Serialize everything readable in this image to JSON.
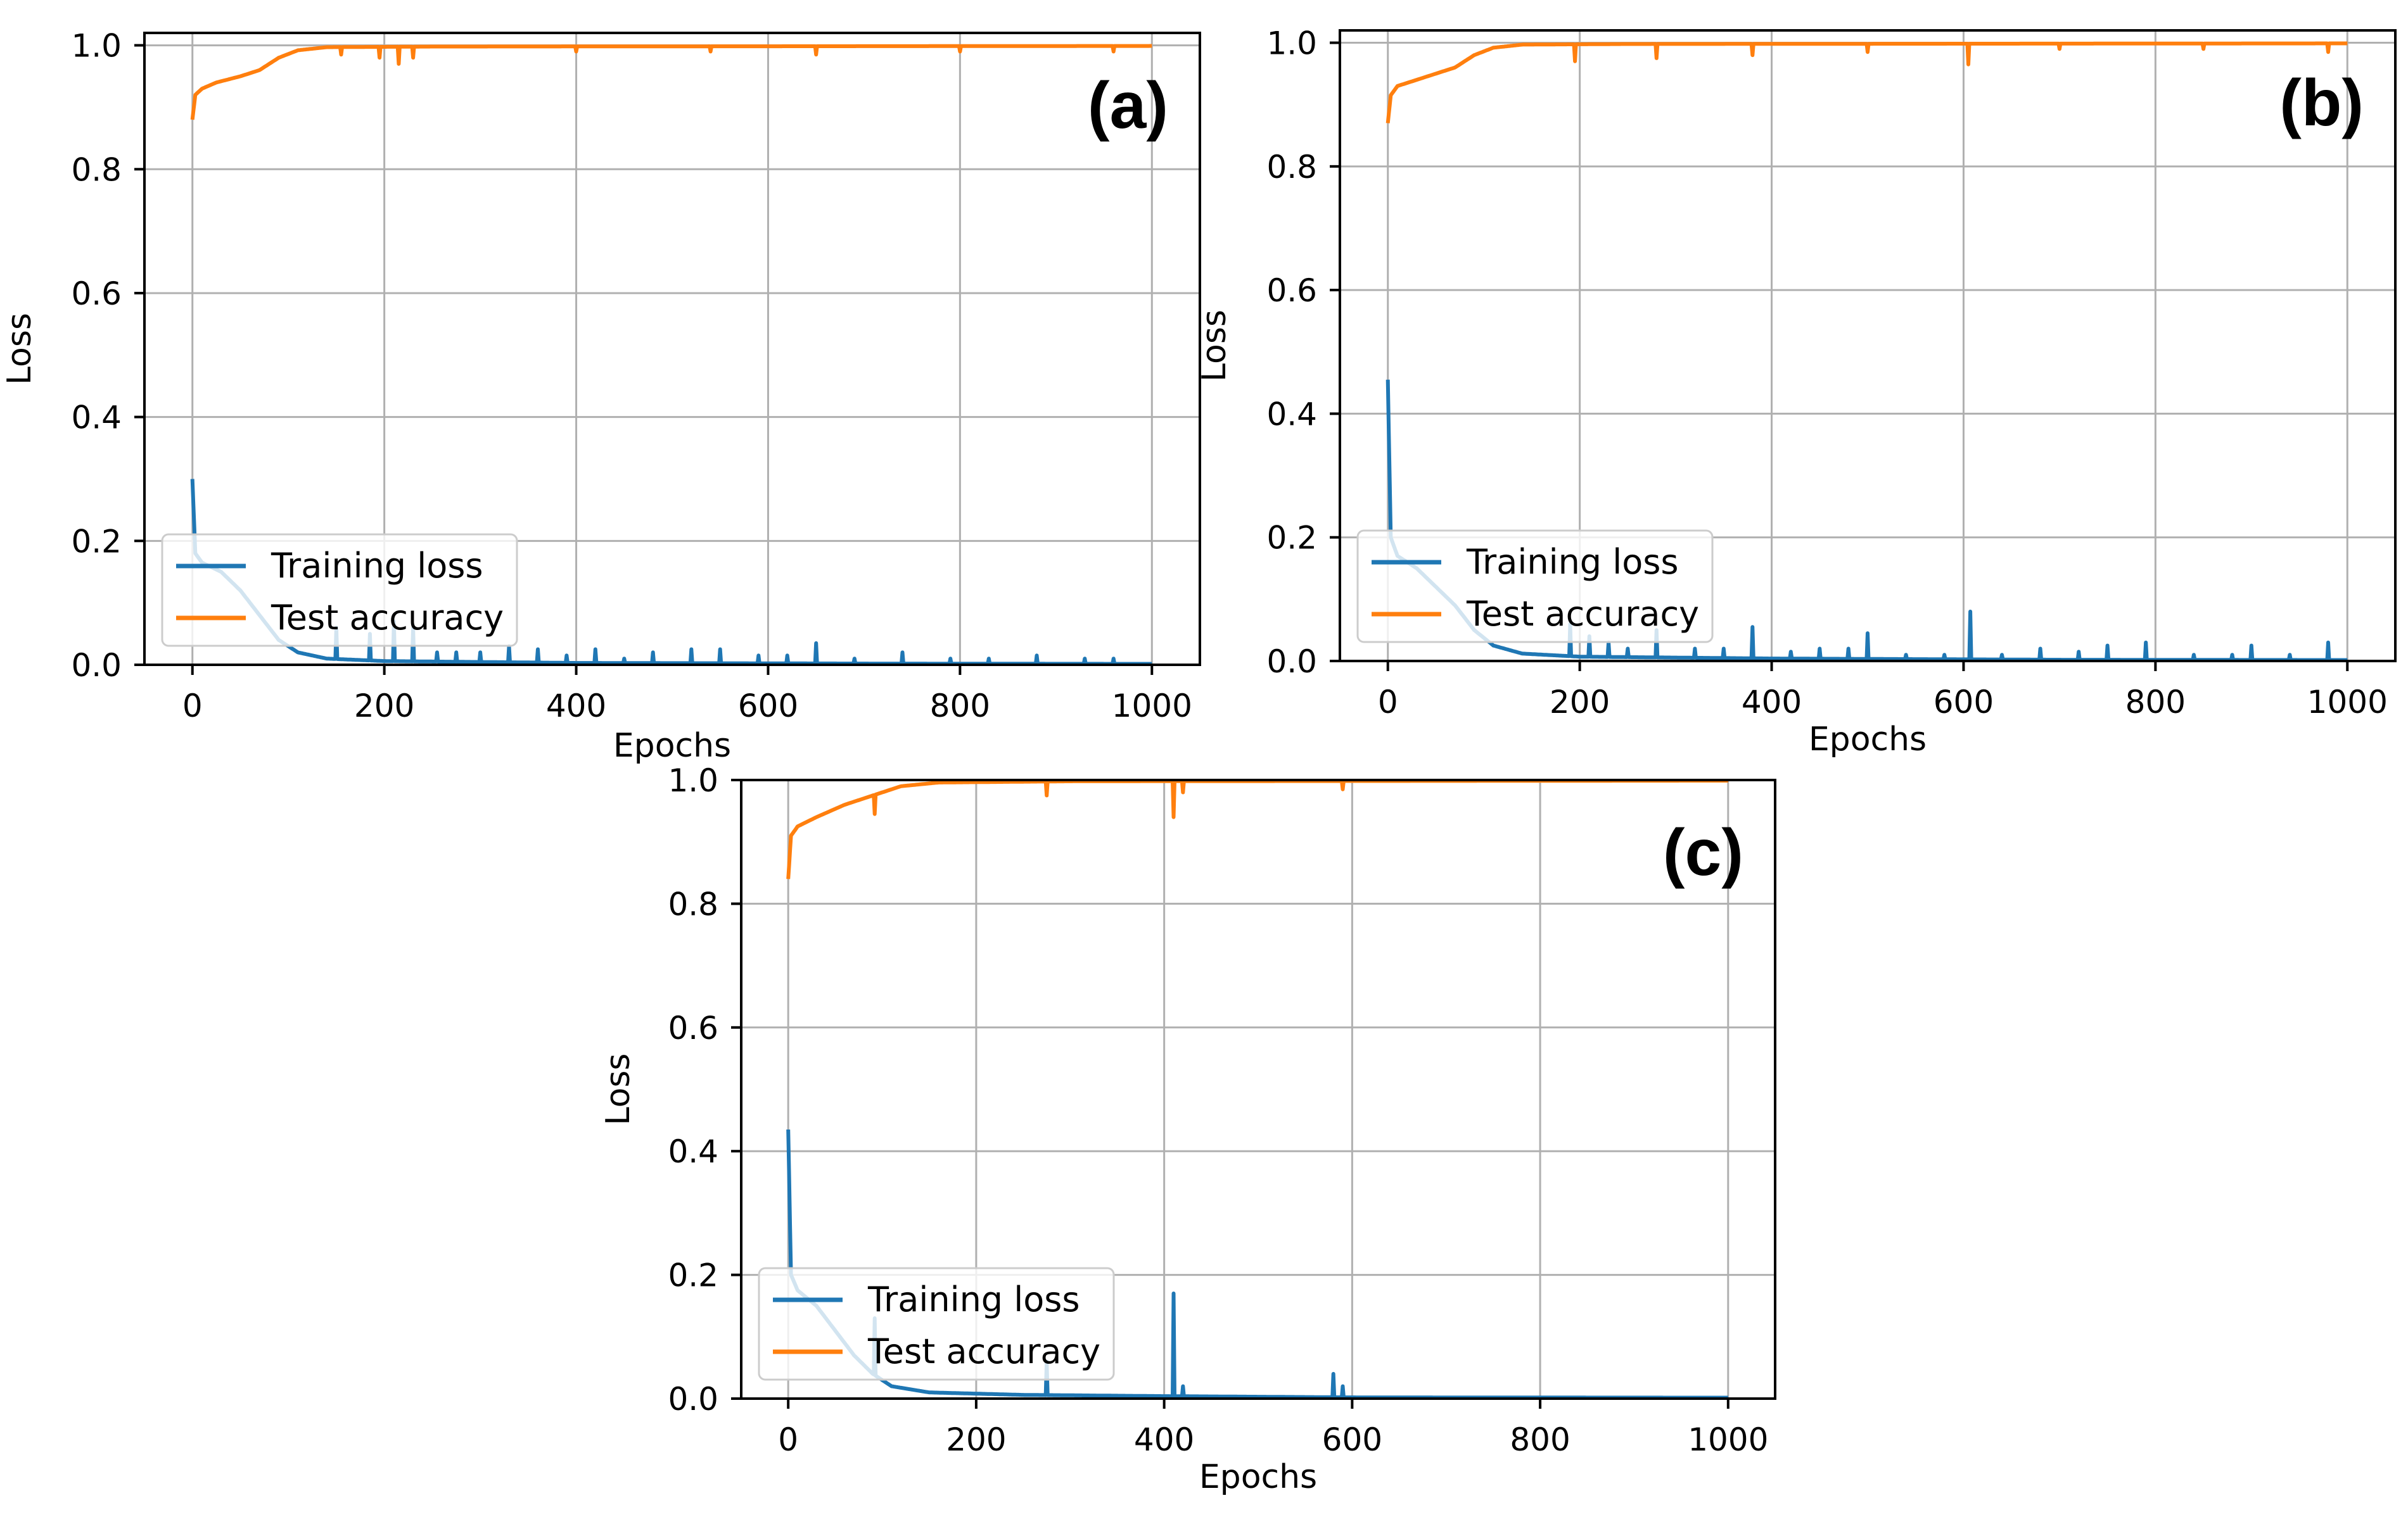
{
  "chart_data": [
    {
      "type": "line",
      "panel": "(a)",
      "xlabel": "Epochs",
      "ylabel": "Loss",
      "xlim": [
        -50,
        1050
      ],
      "ylim": [
        0,
        1.02
      ],
      "xticks": [
        0,
        200,
        400,
        600,
        800,
        1000
      ],
      "yticks": [
        0.0,
        0.2,
        0.4,
        0.6,
        0.8,
        1.0
      ],
      "grid": true,
      "legend": [
        "Training loss",
        "Test accuracy"
      ],
      "legend_loc": "lower left",
      "series": [
        {
          "name": "Training loss",
          "color": "#1f77b4",
          "base": [
            [
              0,
              0.3
            ],
            [
              3,
              0.18
            ],
            [
              10,
              0.165
            ],
            [
              30,
              0.15
            ],
            [
              50,
              0.12
            ],
            [
              70,
              0.08
            ],
            [
              90,
              0.04
            ],
            [
              110,
              0.02
            ],
            [
              140,
              0.01
            ],
            [
              200,
              0.006
            ],
            [
              400,
              0.003
            ],
            [
              700,
              0.002
            ],
            [
              1000,
              0.0015
            ]
          ],
          "spikes": [
            [
              150,
              0.06
            ],
            [
              185,
              0.05
            ],
            [
              210,
              0.07
            ],
            [
              230,
              0.06
            ],
            [
              255,
              0.02
            ],
            [
              275,
              0.02
            ],
            [
              300,
              0.02
            ],
            [
              330,
              0.03
            ],
            [
              360,
              0.025
            ],
            [
              390,
              0.015
            ],
            [
              420,
              0.025
            ],
            [
              450,
              0.01
            ],
            [
              480,
              0.02
            ],
            [
              520,
              0.025
            ],
            [
              550,
              0.025
            ],
            [
              590,
              0.015
            ],
            [
              620,
              0.015
            ],
            [
              650,
              0.035
            ],
            [
              690,
              0.01
            ],
            [
              740,
              0.02
            ],
            [
              790,
              0.01
            ],
            [
              830,
              0.01
            ],
            [
              880,
              0.015
            ],
            [
              930,
              0.01
            ],
            [
              960,
              0.01
            ]
          ]
        },
        {
          "name": "Test accuracy",
          "color": "#ff7f0e",
          "base": [
            [
              0,
              0.88
            ],
            [
              3,
              0.92
            ],
            [
              10,
              0.93
            ],
            [
              25,
              0.94
            ],
            [
              50,
              0.95
            ],
            [
              70,
              0.96
            ],
            [
              90,
              0.98
            ],
            [
              110,
              0.992
            ],
            [
              140,
              0.997
            ],
            [
              250,
              0.998
            ],
            [
              1000,
              0.999
            ]
          ],
          "spikes": [
            [
              155,
              0.985
            ],
            [
              195,
              0.98
            ],
            [
              215,
              0.97
            ],
            [
              230,
              0.98
            ],
            [
              400,
              0.99
            ],
            [
              540,
              0.99
            ],
            [
              650,
              0.985
            ],
            [
              800,
              0.99
            ],
            [
              960,
              0.99
            ]
          ]
        }
      ]
    },
    {
      "type": "line",
      "panel": "(b)",
      "xlabel": "Epochs",
      "ylabel": "Loss",
      "xlim": [
        -50,
        1050
      ],
      "ylim": [
        0,
        1.02
      ],
      "xticks": [
        0,
        200,
        400,
        600,
        800,
        1000
      ],
      "yticks": [
        0.0,
        0.2,
        0.4,
        0.6,
        0.8,
        1.0
      ],
      "grid": true,
      "legend": [
        "Training loss",
        "Test accuracy"
      ],
      "legend_loc": "lower left",
      "series": [
        {
          "name": "Training loss",
          "color": "#1f77b4",
          "base": [
            [
              0,
              0.455
            ],
            [
              3,
              0.2
            ],
            [
              10,
              0.17
            ],
            [
              30,
              0.15
            ],
            [
              50,
              0.12
            ],
            [
              70,
              0.09
            ],
            [
              90,
              0.05
            ],
            [
              110,
              0.025
            ],
            [
              140,
              0.012
            ],
            [
              200,
              0.007
            ],
            [
              400,
              0.004
            ],
            [
              700,
              0.002
            ],
            [
              1000,
              0.0015
            ]
          ],
          "spikes": [
            [
              190,
              0.06
            ],
            [
              210,
              0.04
            ],
            [
              230,
              0.03
            ],
            [
              250,
              0.02
            ],
            [
              280,
              0.05
            ],
            [
              320,
              0.02
            ],
            [
              350,
              0.02
            ],
            [
              380,
              0.055
            ],
            [
              420,
              0.015
            ],
            [
              450,
              0.02
            ],
            [
              480,
              0.02
            ],
            [
              500,
              0.045
            ],
            [
              540,
              0.01
            ],
            [
              580,
              0.01
            ],
            [
              607,
              0.08
            ],
            [
              640,
              0.01
            ],
            [
              680,
              0.02
            ],
            [
              720,
              0.015
            ],
            [
              750,
              0.025
            ],
            [
              790,
              0.03
            ],
            [
              840,
              0.01
            ],
            [
              880,
              0.01
            ],
            [
              900,
              0.025
            ],
            [
              940,
              0.01
            ],
            [
              980,
              0.03
            ]
          ]
        },
        {
          "name": "Test accuracy",
          "color": "#ff7f0e",
          "base": [
            [
              0,
              0.87
            ],
            [
              3,
              0.915
            ],
            [
              10,
              0.93
            ],
            [
              30,
              0.94
            ],
            [
              50,
              0.95
            ],
            [
              70,
              0.96
            ],
            [
              90,
              0.98
            ],
            [
              110,
              0.992
            ],
            [
              140,
              0.997
            ],
            [
              250,
              0.998
            ],
            [
              1000,
              0.999
            ]
          ],
          "spikes": [
            [
              195,
              0.97
            ],
            [
              280,
              0.975
            ],
            [
              380,
              0.98
            ],
            [
              500,
              0.985
            ],
            [
              605,
              0.965
            ],
            [
              700,
              0.99
            ],
            [
              850,
              0.99
            ],
            [
              980,
              0.985
            ]
          ]
        }
      ]
    },
    {
      "type": "line",
      "panel": "(c)",
      "xlabel": "Epochs",
      "ylabel": "Loss",
      "xlim": [
        -50,
        1050
      ],
      "ylim": [
        0,
        1.0
      ],
      "xticks": [
        0,
        200,
        400,
        600,
        800,
        1000
      ],
      "yticks": [
        0.0,
        0.2,
        0.4,
        0.6,
        0.8,
        1.0
      ],
      "grid": true,
      "legend": [
        "Training loss",
        "Test accuracy"
      ],
      "legend_loc": "lower left",
      "series": [
        {
          "name": "Training loss",
          "color": "#1f77b4",
          "base": [
            [
              0,
              0.435
            ],
            [
              3,
              0.2
            ],
            [
              10,
              0.175
            ],
            [
              30,
              0.15
            ],
            [
              50,
              0.11
            ],
            [
              70,
              0.07
            ],
            [
              90,
              0.04
            ],
            [
              110,
              0.02
            ],
            [
              150,
              0.01
            ],
            [
              250,
              0.006
            ],
            [
              400,
              0.004
            ],
            [
              600,
              0.002
            ],
            [
              1000,
              0.0015
            ]
          ],
          "spikes": [
            [
              92,
              0.13
            ],
            [
              275,
              0.06
            ],
            [
              410,
              0.17
            ],
            [
              420,
              0.02
            ],
            [
              580,
              0.04
            ],
            [
              590,
              0.02
            ]
          ]
        },
        {
          "name": "Test accuracy",
          "color": "#ff7f0e",
          "base": [
            [
              0,
              0.84
            ],
            [
              3,
              0.91
            ],
            [
              10,
              0.925
            ],
            [
              30,
              0.94
            ],
            [
              60,
              0.96
            ],
            [
              90,
              0.975
            ],
            [
              120,
              0.99
            ],
            [
              160,
              0.996
            ],
            [
              300,
              0.998
            ],
            [
              1000,
              0.999
            ]
          ],
          "spikes": [
            [
              92,
              0.945
            ],
            [
              275,
              0.975
            ],
            [
              410,
              0.94
            ],
            [
              420,
              0.98
            ],
            [
              590,
              0.985
            ]
          ]
        }
      ]
    }
  ]
}
